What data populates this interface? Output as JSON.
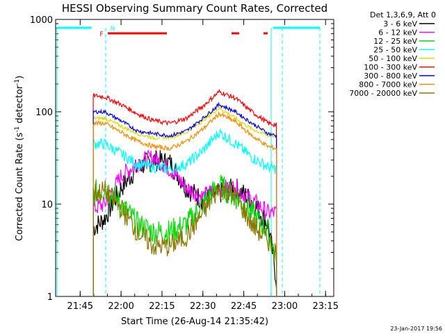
{
  "chart_data": {
    "type": "line",
    "title": "HESSI Observing Summary Count Rates, Corrected",
    "xlabel": "Start Time (26-Aug-14 21:35:42)",
    "ylabel": "Corrected Count Rate (s⁻¹ detector⁻¹)",
    "ylabel_plain": "Corrected Count Rate (s",
    "ylabel_sup1": "-1",
    "ylabel_mid": " detector",
    "ylabel_sup2": "-1",
    "ylabel_end": ")",
    "yscale": "log",
    "ylim": [
      1,
      1000
    ],
    "xlim_minutes": [
      21.6,
      23.3
    ],
    "y_ticks": [
      "1",
      "10",
      "100",
      "1000"
    ],
    "x_ticks": [
      "21:45",
      "22:00",
      "22:15",
      "22:30",
      "22:45",
      "23:00",
      "23:15"
    ],
    "legend_header": "Det 1,3,6,9, Att 0",
    "legend_position": "right",
    "footer": "23-Jan-2017 19:56",
    "flag_labels": {
      "F": "F",
      "N": "N"
    },
    "series": [
      {
        "name": "3 - 6 keV",
        "color": "#000000"
      },
      {
        "name": "6 - 12 keV",
        "color": "#ff00ff"
      },
      {
        "name": "12 - 25 keV",
        "color": "#00dd00"
      },
      {
        "name": "25 - 50 keV",
        "color": "#00ffff"
      },
      {
        "name": "50 - 100 keV",
        "color": "#dddd00"
      },
      {
        "name": "100 - 300 keV",
        "color": "#ff0000"
      },
      {
        "name": "300 - 800 keV",
        "color": "#0000ff"
      },
      {
        "name": "800 - 7000 keV",
        "color": "#ff8800"
      },
      {
        "name": "7000 - 20000 keV",
        "color": "#887700"
      }
    ],
    "approx_points_hours": [
      21.83,
      21.9,
      22.0,
      22.1,
      22.2,
      22.3,
      22.4,
      22.5,
      22.6,
      22.7,
      22.8,
      22.9,
      22.95
    ],
    "approx_values": {
      "3 - 6 keV": [
        5.5,
        7,
        15,
        25,
        30,
        28,
        15,
        11,
        13,
        15,
        11,
        6,
        1.5
      ],
      "6 - 12 keV": [
        9,
        10,
        20,
        28,
        32,
        24,
        15,
        12,
        15,
        15,
        11,
        8,
        8
      ],
      "12 - 25 keV": [
        13,
        15,
        10,
        6,
        5,
        5,
        6,
        10,
        16,
        12,
        8,
        5,
        2.5
      ],
      "25 - 50 keV": [
        45,
        45,
        35,
        27,
        25,
        24,
        27,
        38,
        60,
        45,
        32,
        25,
        24
      ],
      "50 - 100 keV": [
        85,
        85,
        70,
        58,
        52,
        53,
        60,
        80,
        110,
        85,
        65,
        55,
        55
      ],
      "100 - 300 keV": [
        150,
        145,
        120,
        95,
        80,
        75,
        85,
        115,
        165,
        140,
        100,
        75,
        72
      ],
      "300 - 800 keV": [
        100,
        100,
        80,
        62,
        58,
        55,
        62,
        85,
        120,
        100,
        75,
        58,
        55
      ],
      "800 - 7000 keV": [
        75,
        75,
        60,
        48,
        42,
        40,
        48,
        65,
        95,
        78,
        55,
        42,
        40
      ],
      "7000 - 20000 keV": [
        13,
        14,
        9,
        5,
        3.5,
        3.5,
        4.5,
        8,
        15,
        12,
        6,
        4,
        3
      ]
    }
  }
}
